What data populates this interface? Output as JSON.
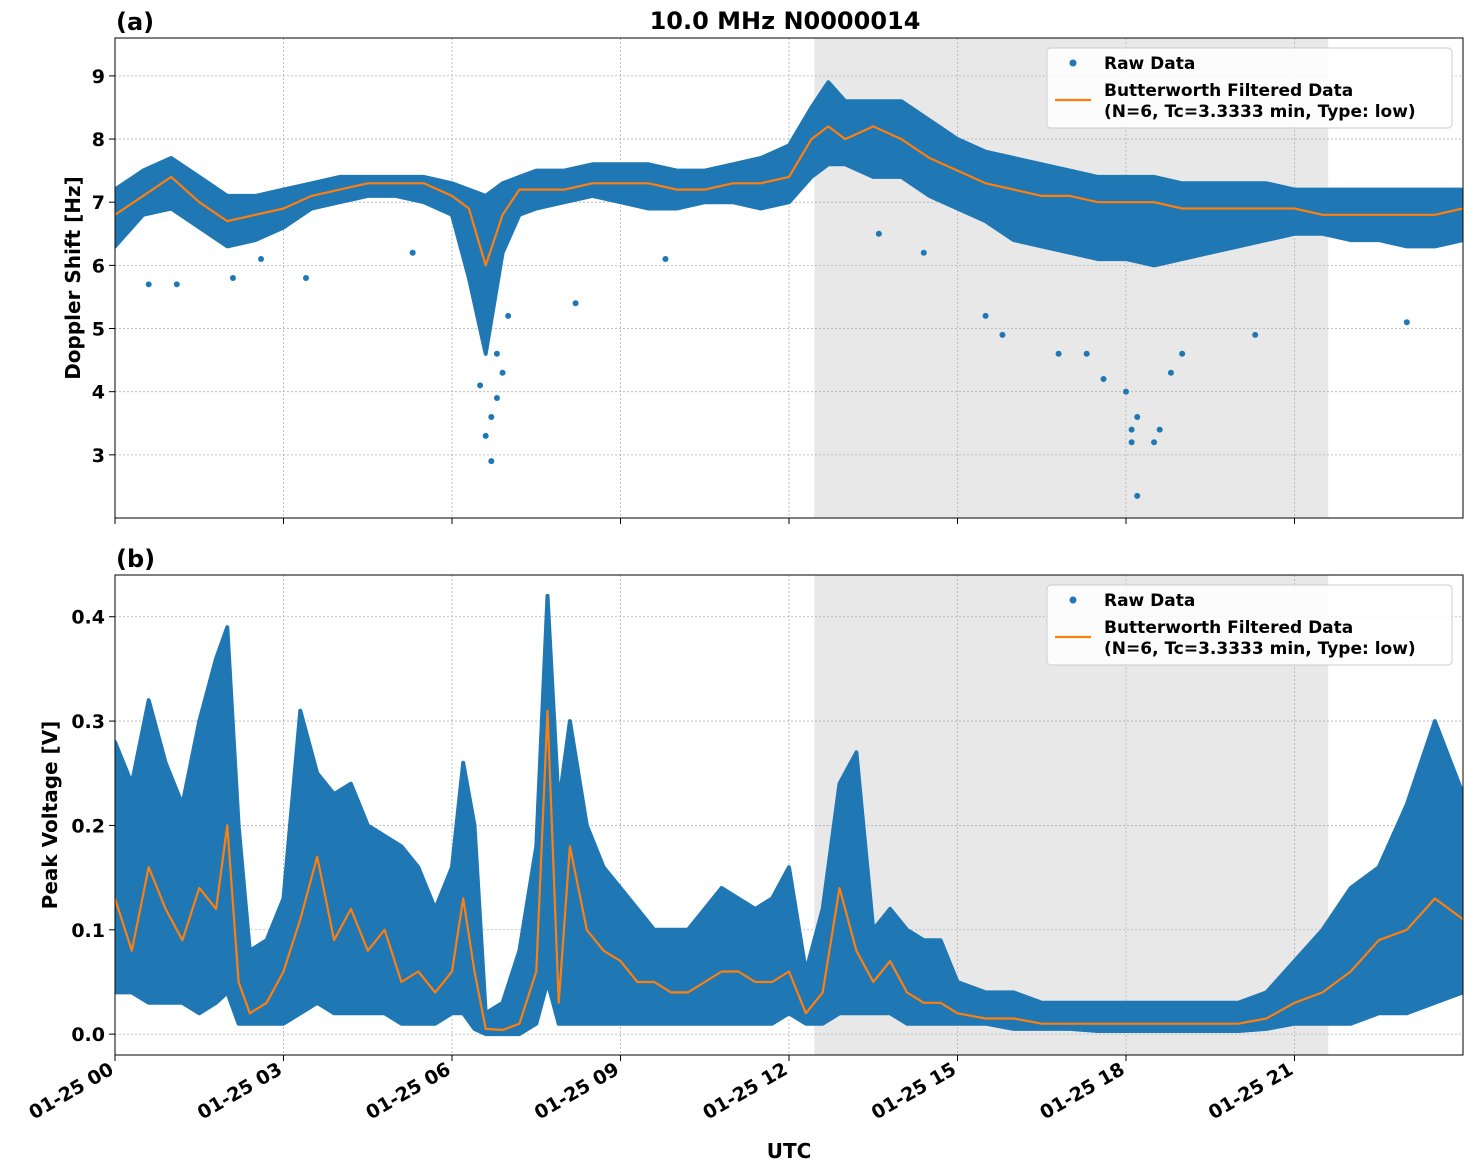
{
  "title": "10.0 MHz N0000014",
  "xlabel": "UTC",
  "colors": {
    "raw": "#1f77b4",
    "filtered": "#ff7f0e",
    "shade": "#e8e8e8",
    "grid": "#b0b0b0"
  },
  "x_ticks": [
    {
      "label": "01-25 00",
      "hour": 0
    },
    {
      "label": "01-25 03",
      "hour": 3
    },
    {
      "label": "01-25 06",
      "hour": 6
    },
    {
      "label": "01-25 09",
      "hour": 9
    },
    {
      "label": "01-25 12",
      "hour": 12
    },
    {
      "label": "01-25 15",
      "hour": 15
    },
    {
      "label": "01-25 18",
      "hour": 18
    },
    {
      "label": "01-25 21",
      "hour": 21
    }
  ],
  "chart_data": [
    {
      "type": "scatter",
      "panel_label": "(a)",
      "ylabel": "Doppler Shift [Hz]",
      "xlim_hours": [
        0,
        24
      ],
      "ylim": [
        2.0,
        9.6
      ],
      "y_ticks": [
        3,
        4,
        5,
        6,
        7,
        8,
        9
      ],
      "grid": true,
      "legend_placement": "top-right",
      "shaded_region_hours": [
        12.45,
        21.6
      ],
      "legend": [
        {
          "label": "Raw Data",
          "marker": "dot"
        },
        {
          "label": "Butterworth Filtered Data",
          "label2": "(N=6, Tc=3.3333 min, Type: low)",
          "marker": "line"
        }
      ],
      "series": [
        {
          "name": "Raw Data",
          "style": "band",
          "x": [
            0,
            0.5,
            1,
            1.5,
            2,
            2.5,
            3,
            3.5,
            4,
            4.5,
            5,
            5.5,
            6,
            6.3,
            6.6,
            6.9,
            7.2,
            7.5,
            8,
            8.5,
            9,
            9.5,
            10,
            10.5,
            11,
            11.5,
            12,
            12.4,
            12.7,
            13,
            13.5,
            14,
            14.5,
            15,
            15.5,
            16,
            16.5,
            17,
            17.5,
            18,
            18.5,
            19,
            19.5,
            20,
            20.5,
            21,
            21.5,
            22,
            22.5,
            23,
            23.5,
            24
          ],
          "lower": [
            6.3,
            6.8,
            6.9,
            6.6,
            6.3,
            6.4,
            6.6,
            6.9,
            7.0,
            7.1,
            7.1,
            7.0,
            6.8,
            5.8,
            4.6,
            6.2,
            6.8,
            6.9,
            7.0,
            7.1,
            7.0,
            6.9,
            6.9,
            7.0,
            7.0,
            6.9,
            7.0,
            7.4,
            7.6,
            7.6,
            7.4,
            7.4,
            7.1,
            6.9,
            6.7,
            6.4,
            6.3,
            6.2,
            6.1,
            6.1,
            6.0,
            6.1,
            6.2,
            6.3,
            6.4,
            6.5,
            6.5,
            6.4,
            6.4,
            6.3,
            6.3,
            6.4
          ],
          "upper": [
            7.2,
            7.5,
            7.7,
            7.4,
            7.1,
            7.1,
            7.2,
            7.3,
            7.4,
            7.4,
            7.4,
            7.4,
            7.3,
            7.2,
            7.1,
            7.3,
            7.4,
            7.5,
            7.5,
            7.6,
            7.6,
            7.6,
            7.5,
            7.5,
            7.6,
            7.7,
            7.9,
            8.5,
            8.9,
            8.6,
            8.6,
            8.6,
            8.3,
            8.0,
            7.8,
            7.7,
            7.6,
            7.5,
            7.4,
            7.4,
            7.4,
            7.3,
            7.3,
            7.3,
            7.3,
            7.2,
            7.2,
            7.2,
            7.2,
            7.2,
            7.2,
            7.2
          ]
        },
        {
          "name": "Butterworth Filtered Data",
          "style": "line",
          "x": [
            0,
            0.5,
            1,
            1.5,
            2,
            2.5,
            3,
            3.5,
            4,
            4.5,
            5,
            5.5,
            6,
            6.3,
            6.6,
            6.9,
            7.2,
            7.5,
            8,
            8.5,
            9,
            9.5,
            10,
            10.5,
            11,
            11.5,
            12,
            12.4,
            12.7,
            13,
            13.5,
            14,
            14.5,
            15,
            15.5,
            16,
            16.5,
            17,
            17.5,
            18,
            18.5,
            19,
            19.5,
            20,
            20.5,
            21,
            21.5,
            22,
            22.5,
            23,
            23.5,
            24
          ],
          "y": [
            6.8,
            7.1,
            7.4,
            7.0,
            6.7,
            6.8,
            6.9,
            7.1,
            7.2,
            7.3,
            7.3,
            7.3,
            7.1,
            6.9,
            6.0,
            6.8,
            7.2,
            7.2,
            7.2,
            7.3,
            7.3,
            7.3,
            7.2,
            7.2,
            7.3,
            7.3,
            7.4,
            8.0,
            8.2,
            8.0,
            8.2,
            8.0,
            7.7,
            7.5,
            7.3,
            7.2,
            7.1,
            7.1,
            7.0,
            7.0,
            7.0,
            6.9,
            6.9,
            6.9,
            6.9,
            6.9,
            6.8,
            6.8,
            6.8,
            6.8,
            6.8,
            6.9
          ]
        },
        {
          "name": "Raw Data outliers",
          "style": "points",
          "x": [
            0.6,
            1.1,
            2.1,
            2.6,
            3.4,
            5.3,
            6.5,
            6.6,
            6.7,
            6.7,
            6.8,
            6.8,
            6.9,
            7.0,
            8.2,
            9.8,
            13.6,
            14.4,
            15.5,
            15.8,
            16.8,
            17.3,
            17.6,
            18.0,
            18.1,
            18.1,
            18.2,
            18.6,
            18.8,
            18.5,
            18.2,
            19.0,
            20.3,
            23.0
          ],
          "y": [
            5.7,
            5.7,
            5.8,
            6.1,
            5.8,
            6.2,
            4.1,
            3.3,
            3.6,
            2.9,
            3.9,
            4.6,
            4.3,
            5.2,
            5.4,
            6.1,
            6.5,
            6.2,
            5.2,
            4.9,
            4.6,
            4.6,
            4.2,
            4.0,
            3.4,
            3.2,
            2.35,
            3.4,
            4.3,
            3.2,
            3.6,
            4.6,
            4.9,
            5.1
          ]
        }
      ]
    },
    {
      "type": "scatter",
      "panel_label": "(b)",
      "ylabel": "Peak Voltage [V]",
      "xlim_hours": [
        0,
        24
      ],
      "ylim": [
        -0.02,
        0.44
      ],
      "y_ticks": [
        0.0,
        0.1,
        0.2,
        0.3,
        0.4
      ],
      "grid": true,
      "legend_placement": "top-right",
      "shaded_region_hours": [
        12.45,
        21.6
      ],
      "legend": [
        {
          "label": "Raw Data",
          "marker": "dot"
        },
        {
          "label": "Butterworth Filtered Data",
          "label2": "(N=6, Tc=3.3333 min, Type: low)",
          "marker": "line"
        }
      ],
      "series": [
        {
          "name": "Raw Data",
          "style": "band",
          "x": [
            0,
            0.3,
            0.6,
            0.9,
            1.2,
            1.5,
            1.8,
            2.0,
            2.2,
            2.4,
            2.7,
            3.0,
            3.3,
            3.6,
            3.9,
            4.2,
            4.5,
            4.8,
            5.1,
            5.4,
            5.7,
            6.0,
            6.2,
            6.4,
            6.6,
            6.9,
            7.2,
            7.5,
            7.7,
            7.9,
            8.1,
            8.4,
            8.7,
            9.0,
            9.3,
            9.6,
            9.9,
            10.2,
            10.5,
            10.8,
            11.1,
            11.4,
            11.7,
            12.0,
            12.3,
            12.6,
            12.9,
            13.2,
            13.5,
            13.8,
            14.1,
            14.4,
            14.7,
            15.0,
            15.5,
            16.0,
            16.5,
            17.0,
            17.5,
            18.0,
            18.5,
            19.0,
            19.5,
            20.0,
            20.5,
            21.0,
            21.5,
            22.0,
            22.5,
            23.0,
            23.5,
            24.0
          ],
          "lower": [
            0.04,
            0.04,
            0.03,
            0.03,
            0.03,
            0.02,
            0.03,
            0.04,
            0.01,
            0.01,
            0.01,
            0.01,
            0.02,
            0.03,
            0.02,
            0.02,
            0.02,
            0.02,
            0.01,
            0.01,
            0.01,
            0.02,
            0.02,
            0.005,
            0.0,
            0.0,
            0.0,
            0.01,
            0.05,
            0.01,
            0.01,
            0.01,
            0.01,
            0.01,
            0.01,
            0.01,
            0.01,
            0.01,
            0.01,
            0.01,
            0.01,
            0.01,
            0.01,
            0.02,
            0.01,
            0.01,
            0.02,
            0.02,
            0.02,
            0.02,
            0.01,
            0.01,
            0.01,
            0.01,
            0.01,
            0.005,
            0.005,
            0.005,
            0.003,
            0.003,
            0.003,
            0.003,
            0.003,
            0.003,
            0.005,
            0.01,
            0.01,
            0.01,
            0.02,
            0.02,
            0.03,
            0.04
          ],
          "upper": [
            0.28,
            0.24,
            0.32,
            0.26,
            0.22,
            0.3,
            0.36,
            0.39,
            0.2,
            0.08,
            0.09,
            0.13,
            0.31,
            0.25,
            0.23,
            0.24,
            0.2,
            0.19,
            0.18,
            0.16,
            0.12,
            0.16,
            0.26,
            0.2,
            0.02,
            0.03,
            0.08,
            0.18,
            0.42,
            0.22,
            0.3,
            0.2,
            0.16,
            0.14,
            0.12,
            0.1,
            0.1,
            0.1,
            0.12,
            0.14,
            0.13,
            0.12,
            0.13,
            0.16,
            0.06,
            0.12,
            0.24,
            0.27,
            0.1,
            0.12,
            0.1,
            0.09,
            0.09,
            0.05,
            0.04,
            0.04,
            0.03,
            0.03,
            0.03,
            0.03,
            0.03,
            0.03,
            0.03,
            0.03,
            0.04,
            0.07,
            0.1,
            0.14,
            0.16,
            0.22,
            0.3,
            0.23
          ]
        },
        {
          "name": "Butterworth Filtered Data",
          "style": "line",
          "x": [
            0,
            0.3,
            0.6,
            0.9,
            1.2,
            1.5,
            1.8,
            2.0,
            2.2,
            2.4,
            2.7,
            3.0,
            3.3,
            3.6,
            3.9,
            4.2,
            4.5,
            4.8,
            5.1,
            5.4,
            5.7,
            6.0,
            6.2,
            6.4,
            6.6,
            6.9,
            7.2,
            7.5,
            7.7,
            7.9,
            8.1,
            8.4,
            8.7,
            9.0,
            9.3,
            9.6,
            9.9,
            10.2,
            10.5,
            10.8,
            11.1,
            11.4,
            11.7,
            12.0,
            12.3,
            12.6,
            12.9,
            13.2,
            13.5,
            13.8,
            14.1,
            14.4,
            14.7,
            15.0,
            15.5,
            16.0,
            16.5,
            17.0,
            17.5,
            18.0,
            18.5,
            19.0,
            19.5,
            20.0,
            20.5,
            21.0,
            21.5,
            22.0,
            22.5,
            23.0,
            23.5,
            24.0
          ],
          "y": [
            0.13,
            0.08,
            0.16,
            0.12,
            0.09,
            0.14,
            0.12,
            0.2,
            0.05,
            0.02,
            0.03,
            0.06,
            0.11,
            0.17,
            0.09,
            0.12,
            0.08,
            0.1,
            0.05,
            0.06,
            0.04,
            0.06,
            0.13,
            0.06,
            0.005,
            0.004,
            0.01,
            0.06,
            0.31,
            0.03,
            0.18,
            0.1,
            0.08,
            0.07,
            0.05,
            0.05,
            0.04,
            0.04,
            0.05,
            0.06,
            0.06,
            0.05,
            0.05,
            0.06,
            0.02,
            0.04,
            0.14,
            0.08,
            0.05,
            0.07,
            0.04,
            0.03,
            0.03,
            0.02,
            0.015,
            0.015,
            0.01,
            0.01,
            0.01,
            0.01,
            0.01,
            0.01,
            0.01,
            0.01,
            0.015,
            0.03,
            0.04,
            0.06,
            0.09,
            0.1,
            0.13,
            0.11
          ]
        }
      ]
    }
  ]
}
